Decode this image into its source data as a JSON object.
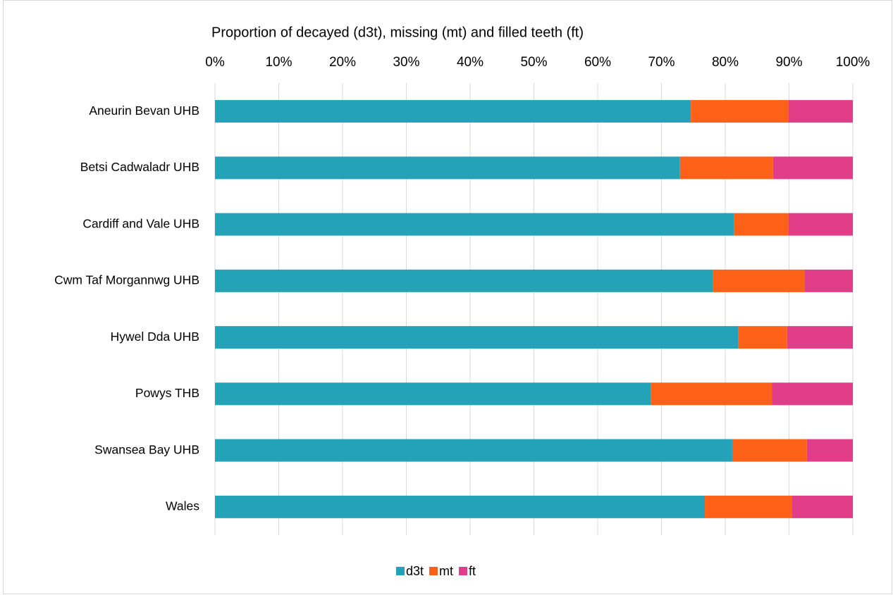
{
  "chart_data": {
    "type": "stacked-bar-horizontal",
    "title": "Proportion of decayed (d3t), missing (mt) and filled teeth (ft)",
    "categories": [
      "Aneurin Bevan UHB",
      "Betsi Cadwaladr UHB",
      "Cardiff and Vale UHB",
      "Cwm Taf Morgannwg UHB",
      "Hywel Dda UHB",
      "Powys THB",
      "Swansea Bay UHB",
      "Wales"
    ],
    "series": [
      {
        "name": "d3t",
        "color": "#24a2b8",
        "values": [
          74.6,
          72.9,
          81.4,
          78.1,
          82.0,
          68.3,
          81.1,
          76.8
        ]
      },
      {
        "name": "mt",
        "color": "#fd6117",
        "values": [
          15.3,
          14.6,
          8.5,
          14.3,
          7.7,
          19.0,
          11.7,
          13.7
        ]
      },
      {
        "name": "ft",
        "color": "#e23d88",
        "values": [
          10.1,
          12.5,
          10.1,
          7.6,
          10.3,
          12.7,
          7.2,
          9.5
        ]
      }
    ],
    "xlim": [
      0,
      100
    ],
    "xticks": [
      {
        "value": 0,
        "label": "0%"
      },
      {
        "value": 10,
        "label": "10%"
      },
      {
        "value": 20,
        "label": "20%"
      },
      {
        "value": 30,
        "label": "30%"
      },
      {
        "value": 40,
        "label": "40%"
      },
      {
        "value": 50,
        "label": "50%"
      },
      {
        "value": 60,
        "label": "60%"
      },
      {
        "value": 70,
        "label": "70%"
      },
      {
        "value": 80,
        "label": "80%"
      },
      {
        "value": 90,
        "label": "90%"
      },
      {
        "value": 100,
        "label": "100%"
      }
    ],
    "grid": true,
    "legend": "bottom"
  }
}
